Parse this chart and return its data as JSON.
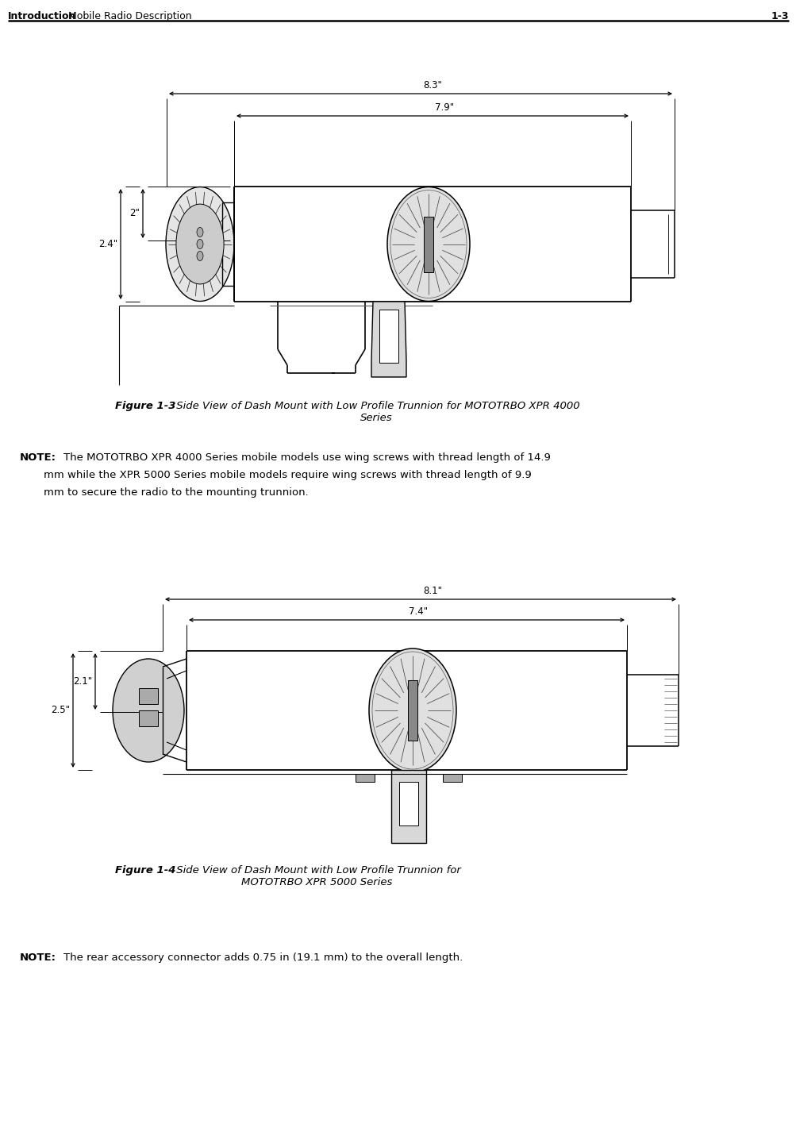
{
  "header_bold": "Introduction",
  "header_normal": " Mobile Radio Description",
  "header_right": "1-3",
  "fig1_caption_bold": "Figure 1-3",
  "fig1_caption_normal": " Side View of Dash Mount with Low Profile Trunnion for MOTOTRBO XPR 4000\nSeries",
  "fig2_caption_bold": "Figure 1-4",
  "fig2_caption_normal": " Side View of Dash Mount with Low Profile Trunnion for\nMOTOTRBO XPR 5000 Series",
  "note1_bold": "NOTE:",
  "note1_text": "  The MOTOTRBO XPR 4000 Series mobile models use wing screws with thread length of 14.9\nmm while the XPR 5000 Series mobile models require wing screws with thread length of 9.9\nmm to secure the radio to the mounting trunnion.",
  "note2_bold": "NOTE:",
  "note2_text": "  The rear accessory connector adds 0.75 in (19.1 mm) to the overall length.",
  "dim1_83": "8.3\"",
  "dim1_79": "7.9\"",
  "dim1_2": "2\"",
  "dim1_24": "2.4\"",
  "dim2_81": "8.1\"",
  "dim2_74": "7.4\"",
  "dim2_21": "2.1\"",
  "dim2_25": "2.5\"",
  "bg_color": "#ffffff",
  "text_color": "#000000"
}
